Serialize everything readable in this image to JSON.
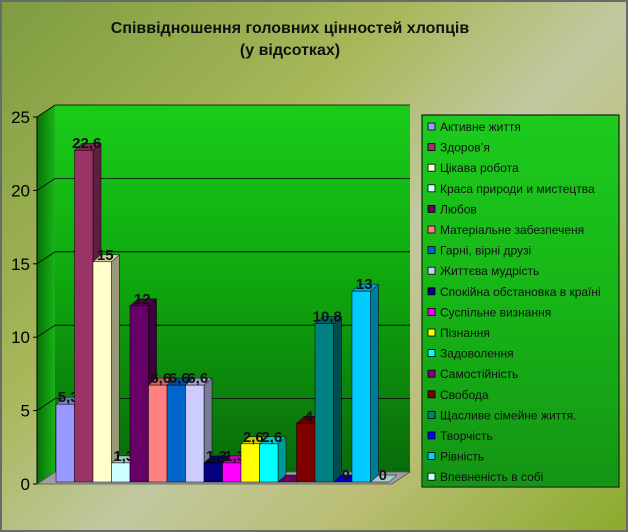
{
  "chart_data": {
    "type": "bar",
    "title_lines": [
      "Співвідношення головних цінностей хлопців",
      "(у відсотках)"
    ],
    "ylim": [
      0,
      25
    ],
    "yticks": [
      "0",
      "5",
      "10",
      "15",
      "20",
      "25"
    ],
    "grid": true,
    "legend_position": "right",
    "series": [
      {
        "name": "Активне життя",
        "value": 5.3,
        "label": "5,3",
        "color": "#9999ff"
      },
      {
        "name": "Здоров’я",
        "value": 22.6,
        "label": "22,6",
        "color": "#993366"
      },
      {
        "name": "Цікава робота",
        "value": 15,
        "label": "15",
        "color": "#ffffcc"
      },
      {
        "name": "Краса природи и мистецтва",
        "value": 1.3,
        "label": "1,3",
        "color": "#ccffff"
      },
      {
        "name": "Любов",
        "value": 12,
        "label": "12",
        "color": "#660066"
      },
      {
        "name": "Матеріальне забезпеченя",
        "value": 6.6,
        "label": "6,6",
        "color": "#ff8080"
      },
      {
        "name": "Гарні, вірні друзі",
        "value": 6.6,
        "label": "6,6",
        "color": "#0066cc"
      },
      {
        "name": "Життєва мудрість",
        "value": 6.6,
        "label": "6,6",
        "color": "#ccccff"
      },
      {
        "name": "Спокійна обстановка в країні",
        "value": 1.3,
        "label": "1,3",
        "color": "#000080"
      },
      {
        "name": "Суспільне визнання",
        "value": 1.3,
        "label": "1,3",
        "color": "#ff00ff"
      },
      {
        "name": "Пізнання",
        "value": 2.6,
        "label": "2,6",
        "color": "#ffff00"
      },
      {
        "name": "Задоволення",
        "value": 2.6,
        "label": "2,6",
        "color": "#00ffff"
      },
      {
        "name": "Самостійність",
        "value": 0,
        "label": "",
        "color": "#800080"
      },
      {
        "name": "Свобода",
        "value": 4,
        "label": "4",
        "color": "#800000"
      },
      {
        "name": "Щасливе сімейне життя.",
        "value": 10.8,
        "label": "10,8",
        "color": "#008080"
      },
      {
        "name": "Творчість",
        "value": 0,
        "label": "0",
        "color": "#0000ff"
      },
      {
        "name": "Рівність",
        "value": 13,
        "label": "13",
        "color": "#00ccff"
      },
      {
        "name": "Впевненість в собі",
        "value": 0,
        "label": "0",
        "color": "#ccffff"
      }
    ]
  }
}
